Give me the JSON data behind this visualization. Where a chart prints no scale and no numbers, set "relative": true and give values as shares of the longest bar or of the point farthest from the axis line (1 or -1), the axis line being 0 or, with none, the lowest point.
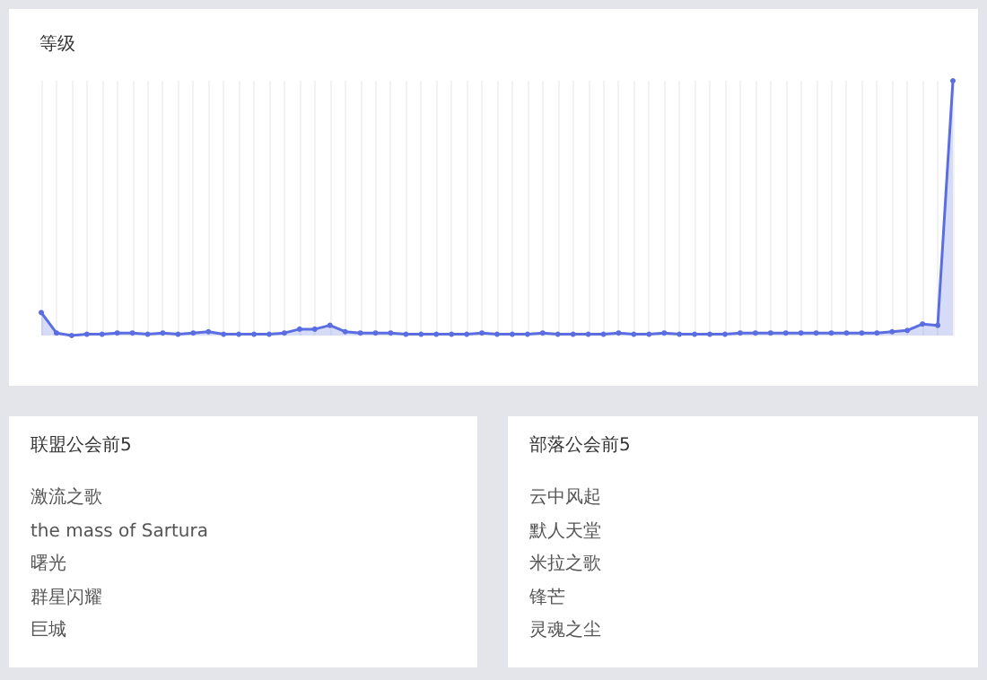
{
  "chart_data": [
    {
      "type": "area",
      "title": "等级",
      "relative": true,
      "grid": "x",
      "color": "#5b6ee1",
      "marker": "circle",
      "categories": [
        null,
        null,
        null,
        null,
        null,
        null,
        null,
        null,
        null,
        null,
        null,
        null,
        null,
        null,
        null,
        null,
        null,
        null,
        null,
        null,
        null,
        null,
        null,
        null,
        null,
        null,
        null,
        null,
        null,
        null,
        null,
        null,
        null,
        null,
        null,
        null,
        null,
        null,
        null,
        null,
        null,
        null,
        null,
        null,
        null,
        null,
        null,
        null,
        null,
        null,
        null,
        null,
        null,
        null,
        null,
        null,
        null,
        null,
        null,
        null,
        null
      ],
      "values": [
        0.09,
        0.01,
        0,
        0.005,
        0.005,
        0.01,
        0.01,
        0.005,
        0.01,
        0.005,
        0.01,
        0.015,
        0.005,
        0.005,
        0.005,
        0.005,
        0.01,
        0.025,
        0.025,
        0.04,
        0.015,
        0.01,
        0.01,
        0.01,
        0.005,
        0.005,
        0.005,
        0.005,
        0.005,
        0.01,
        0.005,
        0.005,
        0.005,
        0.01,
        0.005,
        0.005,
        0.005,
        0.005,
        0.01,
        0.005,
        0.005,
        0.01,
        0.005,
        0.005,
        0.005,
        0.005,
        0.01,
        0.01,
        0.01,
        0.01,
        0.01,
        0.01,
        0.01,
        0.01,
        0.01,
        0.01,
        0.015,
        0.02,
        0.045,
        0.04,
        1
      ]
    },
    {
      "type": "other",
      "title": "联盟公会前5",
      "annotations": [
        "激流之歌",
        "the mass of Sartura",
        "曙光",
        "群星闪耀",
        "巨城"
      ]
    },
    {
      "type": "other",
      "title": "部落公会前5",
      "annotations": [
        "云中风起",
        "默人天堂",
        "米拉之歌",
        "锋芒",
        "灵魂之尘"
      ]
    }
  ]
}
